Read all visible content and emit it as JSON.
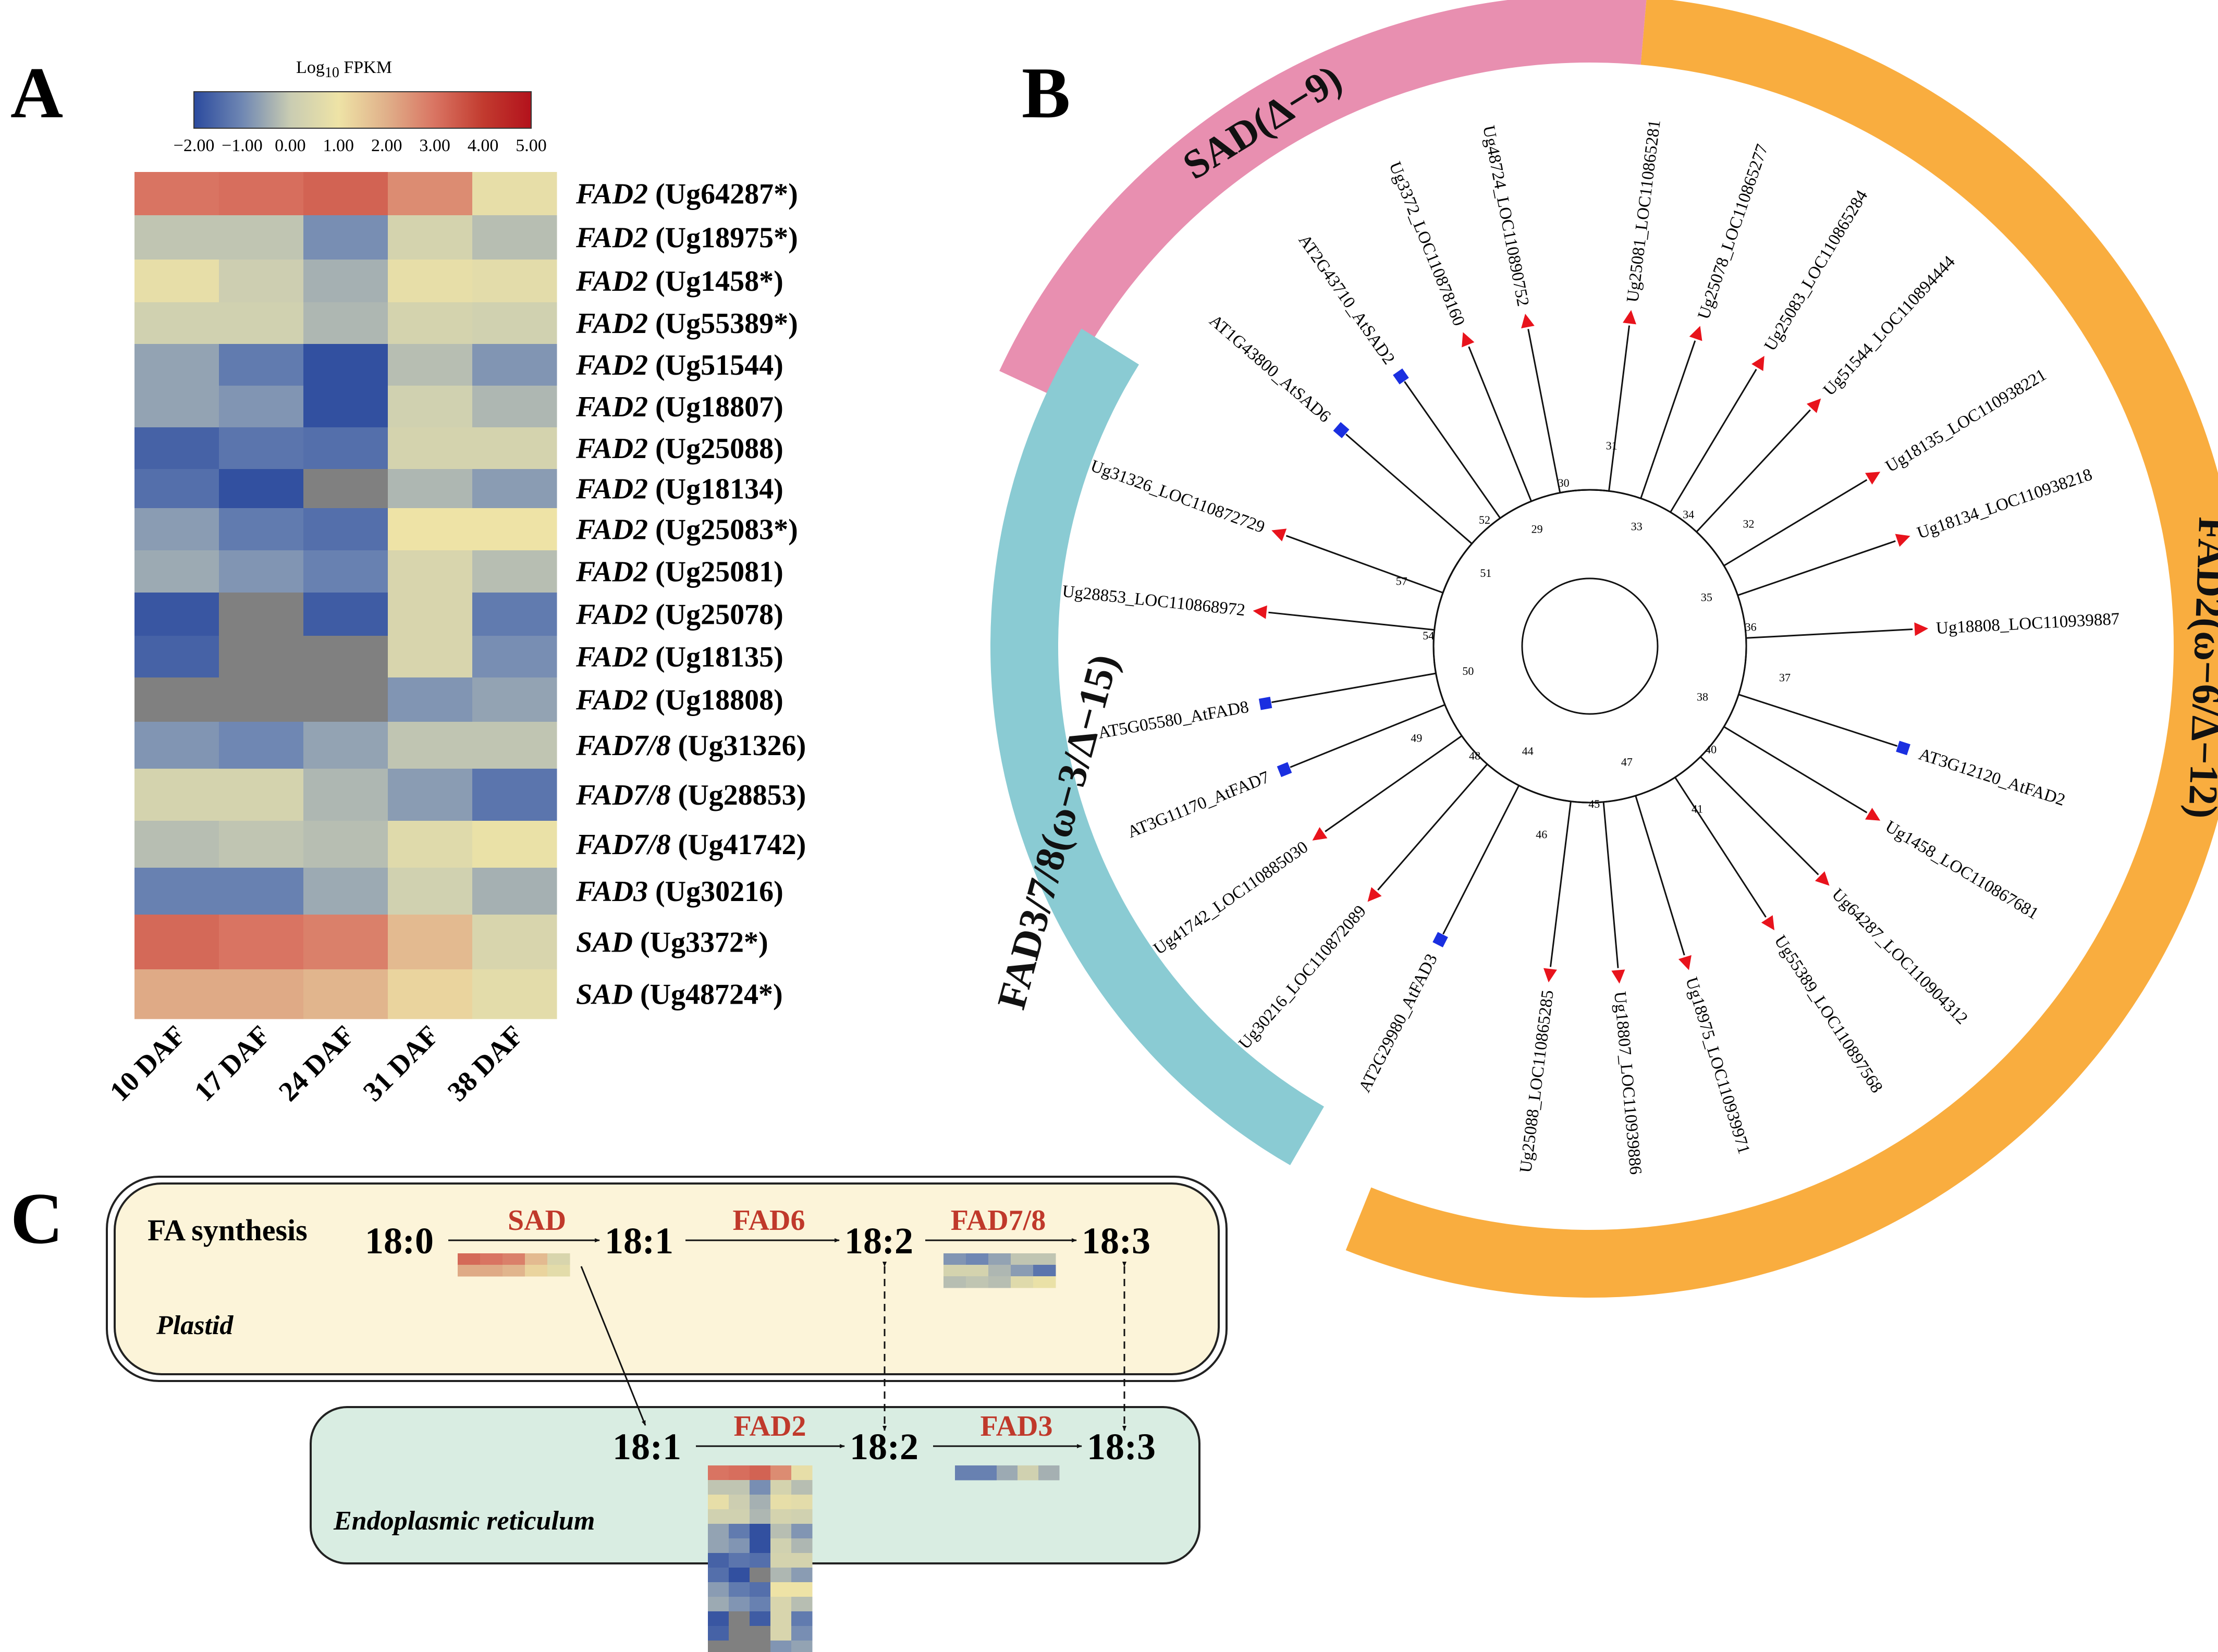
{
  "panels": {
    "a": "A",
    "b": "B",
    "c": "C"
  },
  "colorbar": {
    "title_prefix": "Log",
    "title_sub": "10",
    "title_suffix": " FPKM",
    "ticks": [
      "−2.00",
      "−1.00",
      "0.00",
      "1.00",
      "2.00",
      "3.00",
      "4.00",
      "5.00"
    ],
    "tick_values": [
      -2,
      -1,
      0,
      1,
      2,
      3,
      4,
      5
    ],
    "colors": [
      "#2b4a9e",
      "#6f87b3",
      "#c9ccb2",
      "#eee3a6",
      "#e0b08a",
      "#d97462",
      "#c23b2f",
      "#b3121c"
    ]
  },
  "heatmap": {
    "columns": [
      "10 DAF",
      "17 DAF",
      "24 DAF",
      "31 DAF",
      "38 DAF"
    ],
    "na_color": "#808080",
    "rows": [
      {
        "gene": "FAD2",
        "id": " (Ug64287*)",
        "values": [
          3.0,
          3.1,
          3.3,
          2.6,
          0.8
        ]
      },
      {
        "gene": "FAD2",
        "id": " (Ug18975*)",
        "values": [
          -0.1,
          -0.1,
          -0.9,
          0.3,
          -0.2
        ]
      },
      {
        "gene": "FAD2",
        "id": " (Ug1458*)",
        "values": [
          0.8,
          0.1,
          -0.4,
          0.8,
          0.7
        ]
      },
      {
        "gene": "FAD2",
        "id": " (Ug55389*)",
        "values": [
          0.2,
          0.2,
          -0.3,
          0.3,
          0.2
        ]
      },
      {
        "gene": "FAD2",
        "id": " (Ug51544)",
        "values": [
          -0.6,
          -1.2,
          -1.9,
          -0.2,
          -0.8
        ]
      },
      {
        "gene": "FAD2",
        "id": " (Ug18807)",
        "values": [
          -0.6,
          -0.8,
          -1.9,
          0.2,
          -0.3
        ]
      },
      {
        "gene": "FAD2",
        "id": " (Ug25088)",
        "values": [
          -1.6,
          -1.3,
          -1.4,
          0.3,
          0.3
        ]
      },
      {
        "gene": "FAD2",
        "id": " (Ug18134)",
        "values": [
          -1.4,
          -1.9,
          null,
          -0.3,
          -0.7
        ]
      },
      {
        "gene": "FAD2",
        "id": " (Ug25083*)",
        "values": [
          -0.7,
          -1.2,
          -1.4,
          1.0,
          1.0
        ]
      },
      {
        "gene": "FAD2",
        "id": " (Ug25081)",
        "values": [
          -0.5,
          -0.8,
          -1.1,
          0.4,
          -0.2
        ]
      },
      {
        "gene": "FAD2",
        "id": " (Ug25078)",
        "values": [
          -1.8,
          null,
          -1.7,
          0.4,
          -1.2
        ]
      },
      {
        "gene": "FAD2",
        "id": " (Ug18135)",
        "values": [
          -1.6,
          null,
          null,
          0.4,
          -0.9
        ]
      },
      {
        "gene": "FAD2",
        "id": " (Ug18808)",
        "values": [
          null,
          null,
          null,
          -0.8,
          -0.6
        ]
      },
      {
        "gene": "FAD7/8",
        "id": " (Ug31326)",
        "values": [
          -0.8,
          -1.0,
          -0.6,
          -0.1,
          -0.1
        ]
      },
      {
        "gene": "FAD7/8",
        "id": " (Ug28853)",
        "values": [
          0.3,
          0.3,
          -0.3,
          -0.7,
          -1.3
        ]
      },
      {
        "gene": "FAD7/8",
        "id": " (Ug41742)",
        "values": [
          -0.2,
          -0.1,
          -0.2,
          0.6,
          0.9
        ]
      },
      {
        "gene": "FAD3",
        "id": " (Ug30216)",
        "values": [
          -1.1,
          -1.1,
          -0.5,
          0.2,
          -0.4
        ]
      },
      {
        "gene": "SAD",
        "id": " (Ug3372*)",
        "values": [
          3.2,
          3.0,
          2.8,
          1.8,
          0.4
        ]
      },
      {
        "gene": "SAD",
        "id": " (Ug48724*)",
        "values": [
          2.1,
          2.1,
          1.9,
          1.3,
          0.7
        ]
      }
    ]
  },
  "tree": {
    "clades": {
      "sad": {
        "label": "SAD(Δ−9)",
        "color": "#e88fb0"
      },
      "fad2": {
        "label": "FAD2(ω−6/Δ−12)",
        "color": "#f9ad3f"
      },
      "fad3": {
        "label": "FAD3/7/8(ω−3/Δ−15)",
        "color": "#8acbd3"
      }
    },
    "leaves": [
      {
        "label": "Ug48724_LOC110890752",
        "marker": "ug",
        "angle": -101
      },
      {
        "label": "Ug3372_LOC110878160",
        "marker": "ug",
        "angle": -112
      },
      {
        "label": "AT2G43710_AtSAD2",
        "marker": "at",
        "angle": -125
      },
      {
        "label": "AT1G43800_AtSAD6",
        "marker": "at",
        "angle": -139
      },
      {
        "label": "Ug31326_LOC110872729",
        "marker": "ug",
        "angle": -160
      },
      {
        "label": "Ug28853_LOC110868972",
        "marker": "ug",
        "angle": -174
      },
      {
        "label": "AT5G05580_AtFAD8",
        "marker": "at",
        "angle": 170
      },
      {
        "label": "AT3G11170_AtFAD7",
        "marker": "at",
        "angle": 158
      },
      {
        "label": "Ug41742_LOC110885030",
        "marker": "ug",
        "angle": 145
      },
      {
        "label": "Ug30216_LOC110872089",
        "marker": "ug",
        "angle": 131
      },
      {
        "label": "AT2G29980_AtFAD3",
        "marker": "at",
        "angle": 117
      },
      {
        "label": "Ug25088_LOC110865285",
        "marker": "ug",
        "angle": 97
      },
      {
        "label": "Ug18807_LOC110939886",
        "marker": "ug",
        "angle": 85
      },
      {
        "label": "Ug18975_LOC110939971",
        "marker": "ug",
        "angle": 73
      },
      {
        "label": "Ug55389_LOC110897568",
        "marker": "ug",
        "angle": 57
      },
      {
        "label": "Ug64287_LOC110904312",
        "marker": "ug",
        "angle": 45
      },
      {
        "label": "Ug1458_LOC110867681",
        "marker": "ug",
        "angle": 31
      },
      {
        "label": "AT3G12120_AtFAD2",
        "marker": "at",
        "angle": 18
      },
      {
        "label": "Ug18808_LOC110939887",
        "marker": "ug",
        "angle": -3
      },
      {
        "label": "Ug18134_LOC110938218",
        "marker": "ug",
        "angle": -19
      },
      {
        "label": "Ug18135_LOC110938221",
        "marker": "ug",
        "angle": -31
      },
      {
        "label": "Ug51544_LOC110894444",
        "marker": "ug",
        "angle": -47
      },
      {
        "label": "Ug25083_LOC110865284",
        "marker": "ug",
        "angle": -59
      },
      {
        "label": "Ug25078_LOC110865277",
        "marker": "ug",
        "angle": -71
      },
      {
        "label": "Ug25081_LOC110865281",
        "marker": "ug",
        "angle": -83
      }
    ],
    "bootstraps": [
      "29",
      "30",
      "31",
      "33",
      "34",
      "32",
      "35",
      "36",
      "37",
      "38",
      "40",
      "41",
      "47",
      "45",
      "46",
      "44",
      "48",
      "49",
      "50",
      "54",
      "57",
      "51",
      "52"
    ],
    "marker_colors": {
      "ug": "#e8131c",
      "at": "#1a2fe0"
    }
  },
  "pathway": {
    "fa_synthesis": "FA synthesis",
    "plastid": "Plastid",
    "er": "Endoplasmic reticulum",
    "plastid_chems": [
      "18:0",
      "18:1",
      "18:2",
      "18:3"
    ],
    "plastid_enzymes": [
      "SAD",
      "FAD6",
      "FAD7/8"
    ],
    "er_chems": [
      "18:1",
      "18:2",
      "18:3"
    ],
    "er_enzymes": [
      "FAD2",
      "FAD3"
    ]
  }
}
